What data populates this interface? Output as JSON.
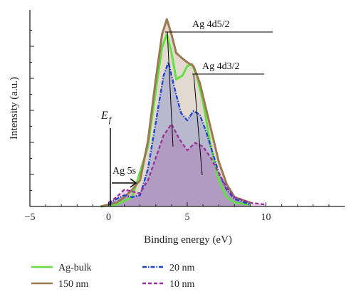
{
  "chart_data": {
    "type": "line",
    "xlabel": "Binding energy (eV)",
    "ylabel": "Intensity (a.u.)",
    "xlim": [
      -5,
      15
    ],
    "x_ticks": [
      -5,
      0,
      5,
      10
    ],
    "ylim": [
      0,
      1.05
    ],
    "y_ticks": "unlabeled minor ticks",
    "annotations": {
      "peak1": "Ag 4d5/2",
      "peak2": "Ag 4d3/2",
      "ag5s": "Ag 5s",
      "fermi": "E",
      "fermi_sub": "f"
    },
    "legend": [
      {
        "label": "Ag-bulk",
        "color": "#66dd44",
        "style": "solid"
      },
      {
        "label": "150 nm",
        "color": "#9b7a52",
        "style": "solid"
      },
      {
        "label": "20 nm",
        "color": "#2244cc",
        "style": "dashdot"
      },
      {
        "label": "10 nm",
        "color": "#993399",
        "style": "dashed"
      }
    ],
    "series": [
      {
        "name": "Ag-bulk",
        "color": "#66dd44",
        "x": [
          -0.5,
          0.5,
          1.5,
          2.5,
          3.0,
          3.4,
          3.7,
          4.0,
          4.3,
          4.7,
          5.0,
          5.3,
          5.6,
          6.0,
          6.5,
          7.0,
          7.5,
          8.0,
          9.0
        ],
        "y": [
          0.0,
          0.01,
          0.05,
          0.32,
          0.62,
          0.85,
          0.92,
          0.82,
          0.68,
          0.7,
          0.75,
          0.76,
          0.7,
          0.56,
          0.32,
          0.14,
          0.05,
          0.02,
          0.01
        ]
      },
      {
        "name": "150 nm",
        "color": "#9b7a52",
        "x": [
          -0.5,
          0.5,
          1.0,
          1.5,
          2.0,
          2.5,
          3.0,
          3.4,
          3.7,
          4.0,
          4.3,
          4.7,
          5.0,
          5.4,
          5.8,
          6.2,
          6.6,
          7.0,
          7.5,
          8.0,
          9.0
        ],
        "y": [
          0.0,
          0.02,
          0.05,
          0.09,
          0.14,
          0.35,
          0.68,
          0.92,
          1.0,
          0.92,
          0.82,
          0.79,
          0.77,
          0.75,
          0.66,
          0.52,
          0.38,
          0.24,
          0.12,
          0.05,
          0.02
        ]
      },
      {
        "name": "20 nm",
        "color": "#2244cc",
        "x": [
          0.0,
          0.5,
          1.0,
          1.5,
          2.0,
          2.5,
          3.0,
          3.5,
          3.8,
          4.2,
          4.6,
          5.0,
          5.4,
          5.8,
          6.2,
          6.6,
          7.0,
          7.5,
          8.0,
          9.0
        ],
        "y": [
          0.01,
          0.04,
          0.06,
          0.05,
          0.06,
          0.2,
          0.45,
          0.7,
          0.77,
          0.63,
          0.5,
          0.46,
          0.51,
          0.49,
          0.4,
          0.29,
          0.18,
          0.09,
          0.04,
          0.01
        ]
      },
      {
        "name": "10 nm",
        "color": "#993399",
        "x": [
          0.0,
          0.5,
          1.0,
          1.5,
          2.0,
          2.5,
          3.0,
          3.5,
          4.0,
          4.5,
          5.0,
          5.5,
          6.0,
          6.5,
          7.0,
          7.5,
          8.0,
          9.0,
          10.0
        ],
        "y": [
          0.02,
          0.05,
          0.09,
          0.08,
          0.07,
          0.14,
          0.26,
          0.38,
          0.44,
          0.36,
          0.3,
          0.34,
          0.32,
          0.26,
          0.18,
          0.1,
          0.05,
          0.02,
          0.01
        ]
      }
    ]
  }
}
